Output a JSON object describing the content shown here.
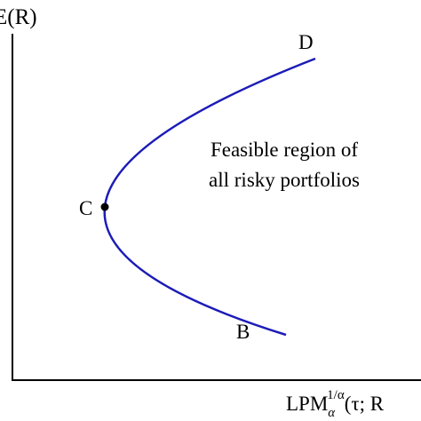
{
  "axes": {
    "y_label": "E(R)",
    "x_label": {
      "base": "LPM",
      "subscript": "α",
      "superscript": "1/α",
      "args": "(τ; R"
    }
  },
  "points": [
    {
      "label": "D"
    },
    {
      "label": "C"
    },
    {
      "label": "B"
    }
  ],
  "region_label": [
    "Feasible region of",
    "all risky portfolios"
  ]
}
